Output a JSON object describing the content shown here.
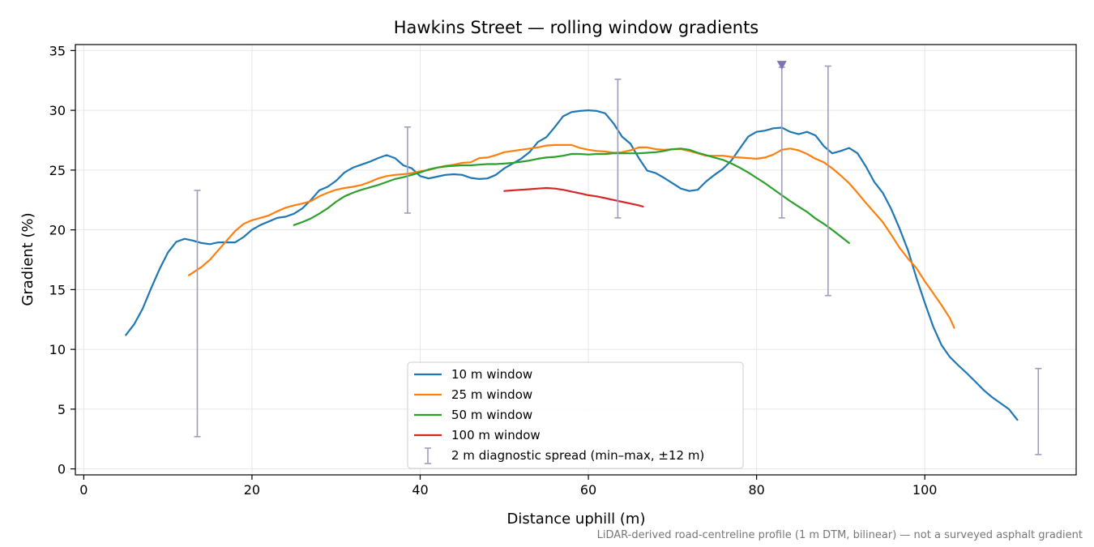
{
  "chart_data": {
    "type": "line",
    "title": "Hawkins Street — rolling window gradients",
    "xlabel": "Distance uphill (m)",
    "ylabel": "Gradient (%)",
    "xlim": [
      -1,
      118
    ],
    "ylim": [
      -0.5,
      35.5
    ],
    "xticks": [
      0,
      20,
      40,
      60,
      80,
      100
    ],
    "yticks": [
      0,
      5,
      10,
      15,
      20,
      25,
      30,
      35
    ],
    "grid": true,
    "legend_position": "bottom-center",
    "footnote": "LiDAR-derived road-centreline profile (1 m DTM, bilinear) — not a surveyed asphalt gradient",
    "series": [
      {
        "name": "10 m window",
        "color": "#1f77b4",
        "points": [
          [
            5,
            11.2
          ],
          [
            6,
            12.1
          ],
          [
            7,
            13.4
          ],
          [
            8,
            15.1
          ],
          [
            9,
            16.7
          ],
          [
            10,
            18.1
          ],
          [
            11,
            19.0
          ],
          [
            12,
            19.25
          ],
          [
            13,
            19.1
          ],
          [
            14,
            18.9
          ],
          [
            15,
            18.8
          ],
          [
            16,
            18.95
          ],
          [
            17,
            18.95
          ],
          [
            18,
            18.95
          ],
          [
            19,
            19.4
          ],
          [
            20,
            20.0
          ],
          [
            21,
            20.4
          ],
          [
            22,
            20.7
          ],
          [
            23,
            21.0
          ],
          [
            24,
            21.1
          ],
          [
            25,
            21.35
          ],
          [
            26,
            21.8
          ],
          [
            27,
            22.5
          ],
          [
            28,
            23.3
          ],
          [
            29,
            23.6
          ],
          [
            30,
            24.1
          ],
          [
            31,
            24.8
          ],
          [
            32,
            25.2
          ],
          [
            33,
            25.45
          ],
          [
            34,
            25.7
          ],
          [
            35,
            26.0
          ],
          [
            36,
            26.25
          ],
          [
            37,
            26.0
          ],
          [
            38,
            25.4
          ],
          [
            39,
            25.15
          ],
          [
            40,
            24.5
          ],
          [
            41,
            24.3
          ],
          [
            42,
            24.45
          ],
          [
            43,
            24.6
          ],
          [
            44,
            24.65
          ],
          [
            45,
            24.6
          ],
          [
            46,
            24.35
          ],
          [
            47,
            24.25
          ],
          [
            48,
            24.3
          ],
          [
            49,
            24.6
          ],
          [
            50,
            25.15
          ],
          [
            51,
            25.55
          ],
          [
            52,
            25.95
          ],
          [
            53,
            26.5
          ],
          [
            54,
            27.35
          ],
          [
            55,
            27.75
          ],
          [
            56,
            28.6
          ],
          [
            57,
            29.5
          ],
          [
            58,
            29.85
          ],
          [
            59,
            29.95
          ],
          [
            60,
            30.0
          ],
          [
            61,
            29.95
          ],
          [
            62,
            29.75
          ],
          [
            63,
            28.9
          ],
          [
            64,
            27.8
          ],
          [
            65,
            27.2
          ],
          [
            66,
            26.0
          ],
          [
            67,
            24.95
          ],
          [
            68,
            24.75
          ],
          [
            69,
            24.35
          ],
          [
            70,
            23.9
          ],
          [
            71,
            23.45
          ],
          [
            72,
            23.25
          ],
          [
            73,
            23.35
          ],
          [
            74,
            24.05
          ],
          [
            75,
            24.6
          ],
          [
            76,
            25.1
          ],
          [
            77,
            25.8
          ],
          [
            78,
            26.8
          ],
          [
            79,
            27.8
          ],
          [
            80,
            28.2
          ],
          [
            81,
            28.3
          ],
          [
            82,
            28.5
          ],
          [
            83,
            28.55
          ],
          [
            84,
            28.2
          ],
          [
            85,
            28.0
          ],
          [
            86,
            28.2
          ],
          [
            87,
            27.9
          ],
          [
            88,
            27.0
          ],
          [
            89,
            26.4
          ],
          [
            90,
            26.6
          ],
          [
            91,
            26.85
          ],
          [
            92,
            26.4
          ],
          [
            93,
            25.3
          ],
          [
            94,
            24.0
          ],
          [
            95,
            23.1
          ],
          [
            96,
            21.75
          ],
          [
            97,
            20.1
          ],
          [
            98,
            18.3
          ],
          [
            99,
            16.0
          ],
          [
            100,
            13.9
          ],
          [
            101,
            11.9
          ],
          [
            102,
            10.35
          ],
          [
            103,
            9.35
          ],
          [
            104,
            8.65
          ],
          [
            105,
            8.0
          ],
          [
            106,
            7.3
          ],
          [
            107,
            6.6
          ],
          [
            108,
            6.0
          ],
          [
            109,
            5.5
          ],
          [
            110,
            5.0
          ],
          [
            111,
            4.1
          ]
        ]
      },
      {
        "name": "25 m window",
        "color": "#ff7f0e",
        "points": [
          [
            12.5,
            16.2
          ],
          [
            14,
            16.9
          ],
          [
            15,
            17.5
          ],
          [
            16,
            18.3
          ],
          [
            17,
            19.1
          ],
          [
            18,
            19.9
          ],
          [
            19,
            20.5
          ],
          [
            20,
            20.8
          ],
          [
            21,
            21.0
          ],
          [
            22,
            21.2
          ],
          [
            23,
            21.55
          ],
          [
            24,
            21.85
          ],
          [
            25,
            22.05
          ],
          [
            26,
            22.2
          ],
          [
            27,
            22.4
          ],
          [
            28,
            22.8
          ],
          [
            29,
            23.1
          ],
          [
            30,
            23.35
          ],
          [
            31,
            23.5
          ],
          [
            32,
            23.6
          ],
          [
            33,
            23.75
          ],
          [
            34,
            24.0
          ],
          [
            35,
            24.3
          ],
          [
            36,
            24.5
          ],
          [
            37,
            24.6
          ],
          [
            38,
            24.65
          ],
          [
            39,
            24.75
          ],
          [
            40,
            24.9
          ],
          [
            41,
            25.0
          ],
          [
            42,
            25.2
          ],
          [
            43,
            25.35
          ],
          [
            44,
            25.45
          ],
          [
            45,
            25.6
          ],
          [
            46,
            25.65
          ],
          [
            47,
            26.0
          ],
          [
            48,
            26.05
          ],
          [
            49,
            26.25
          ],
          [
            50,
            26.5
          ],
          [
            51,
            26.6
          ],
          [
            52,
            26.7
          ],
          [
            53,
            26.8
          ],
          [
            54,
            26.9
          ],
          [
            55,
            27.05
          ],
          [
            56,
            27.1
          ],
          [
            57,
            27.1
          ],
          [
            58,
            27.1
          ],
          [
            59,
            26.85
          ],
          [
            60,
            26.7
          ],
          [
            61,
            26.6
          ],
          [
            62,
            26.55
          ],
          [
            63,
            26.45
          ],
          [
            64,
            26.5
          ],
          [
            65,
            26.65
          ],
          [
            66,
            26.9
          ],
          [
            67,
            26.9
          ],
          [
            68,
            26.75
          ],
          [
            69,
            26.7
          ],
          [
            70,
            26.75
          ],
          [
            71,
            26.75
          ],
          [
            72,
            26.6
          ],
          [
            73,
            26.4
          ],
          [
            74,
            26.2
          ],
          [
            75,
            26.2
          ],
          [
            76,
            26.2
          ],
          [
            77,
            26.1
          ],
          [
            78,
            26.05
          ],
          [
            79,
            26.0
          ],
          [
            80,
            25.95
          ],
          [
            81,
            26.05
          ],
          [
            82,
            26.3
          ],
          [
            83,
            26.7
          ],
          [
            84,
            26.8
          ],
          [
            85,
            26.65
          ],
          [
            86,
            26.35
          ],
          [
            87,
            25.95
          ],
          [
            88,
            25.65
          ],
          [
            89,
            25.15
          ],
          [
            90,
            24.55
          ],
          [
            91,
            23.9
          ],
          [
            92,
            23.1
          ],
          [
            93,
            22.25
          ],
          [
            94,
            21.45
          ],
          [
            95,
            20.65
          ],
          [
            96,
            19.6
          ],
          [
            97,
            18.5
          ],
          [
            98,
            17.6
          ],
          [
            99,
            16.8
          ],
          [
            100,
            15.7
          ],
          [
            101,
            14.7
          ],
          [
            102,
            13.7
          ],
          [
            103,
            12.6
          ],
          [
            103.5,
            11.8
          ]
        ]
      },
      {
        "name": "50 m window",
        "color": "#2ca02c",
        "points": [
          [
            25,
            20.4
          ],
          [
            26,
            20.65
          ],
          [
            27,
            20.95
          ],
          [
            28,
            21.35
          ],
          [
            29,
            21.8
          ],
          [
            30,
            22.35
          ],
          [
            31,
            22.8
          ],
          [
            32,
            23.1
          ],
          [
            33,
            23.35
          ],
          [
            34,
            23.55
          ],
          [
            35,
            23.75
          ],
          [
            36,
            24.0
          ],
          [
            37,
            24.25
          ],
          [
            38,
            24.4
          ],
          [
            39,
            24.6
          ],
          [
            40,
            24.8
          ],
          [
            41,
            25.05
          ],
          [
            42,
            25.2
          ],
          [
            43,
            25.3
          ],
          [
            44,
            25.35
          ],
          [
            45,
            25.4
          ],
          [
            46,
            25.4
          ],
          [
            47,
            25.45
          ],
          [
            48,
            25.5
          ],
          [
            49,
            25.5
          ],
          [
            50,
            25.55
          ],
          [
            51,
            25.6
          ],
          [
            52,
            25.7
          ],
          [
            53,
            25.8
          ],
          [
            54,
            25.95
          ],
          [
            55,
            26.05
          ],
          [
            56,
            26.1
          ],
          [
            57,
            26.2
          ],
          [
            58,
            26.35
          ],
          [
            59,
            26.35
          ],
          [
            60,
            26.3
          ],
          [
            61,
            26.35
          ],
          [
            62,
            26.35
          ],
          [
            63,
            26.4
          ],
          [
            64,
            26.4
          ],
          [
            65,
            26.4
          ],
          [
            66,
            26.4
          ],
          [
            67,
            26.45
          ],
          [
            68,
            26.5
          ],
          [
            69,
            26.6
          ],
          [
            70,
            26.75
          ],
          [
            71,
            26.8
          ],
          [
            72,
            26.7
          ],
          [
            73,
            26.45
          ],
          [
            74,
            26.25
          ],
          [
            75,
            26.05
          ],
          [
            76,
            25.85
          ],
          [
            77,
            25.55
          ],
          [
            78,
            25.2
          ],
          [
            79,
            24.8
          ],
          [
            80,
            24.35
          ],
          [
            81,
            23.9
          ],
          [
            82,
            23.4
          ],
          [
            83,
            22.9
          ],
          [
            84,
            22.4
          ],
          [
            85,
            21.95
          ],
          [
            86,
            21.5
          ],
          [
            87,
            20.95
          ],
          [
            88,
            20.5
          ],
          [
            89,
            20.0
          ],
          [
            90,
            19.45
          ],
          [
            91,
            18.9
          ]
        ]
      },
      {
        "name": "100 m window",
        "color": "#d62728",
        "points": [
          [
            50,
            23.25
          ],
          [
            51,
            23.3
          ],
          [
            52,
            23.35
          ],
          [
            53,
            23.4
          ],
          [
            54,
            23.45
          ],
          [
            55,
            23.5
          ],
          [
            56,
            23.45
          ],
          [
            57,
            23.35
          ],
          [
            58,
            23.2
          ],
          [
            59,
            23.05
          ],
          [
            60,
            22.9
          ],
          [
            61,
            22.8
          ],
          [
            62,
            22.65
          ],
          [
            63,
            22.5
          ],
          [
            64,
            22.35
          ],
          [
            65,
            22.2
          ],
          [
            66,
            22.05
          ],
          [
            66.5,
            21.95
          ]
        ]
      }
    ],
    "errorbars": {
      "name": "2 m diagnostic spread (min–max, ±12 m)",
      "color": "#a09cbc",
      "bars": [
        {
          "x": 13.5,
          "min": 2.7,
          "max": 23.3
        },
        {
          "x": 38.5,
          "min": 21.4,
          "max": 28.6
        },
        {
          "x": 63.5,
          "min": 21.0,
          "max": 32.6
        },
        {
          "x": 83.0,
          "min": 21.0,
          "max": 33.6
        },
        {
          "x": 88.5,
          "min": 14.5,
          "max": 33.7
        },
        {
          "x": 113.5,
          "min": 1.2,
          "max": 8.4
        }
      ]
    },
    "markers": [
      {
        "type": "triangle-down",
        "x": 83.0,
        "y": 33.8,
        "color": "#8172b2"
      }
    ]
  }
}
